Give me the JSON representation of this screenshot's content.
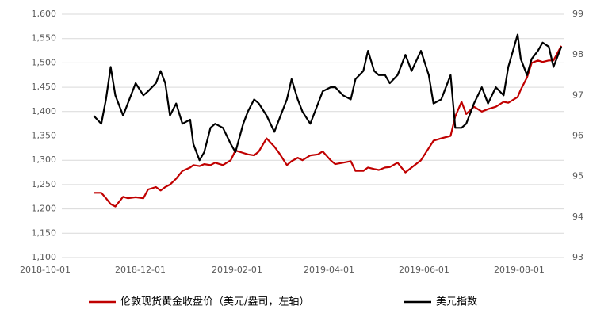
{
  "chart_data": {
    "type": "line",
    "x": [
      "2018-11-01",
      "2018-11-06",
      "2018-11-09",
      "2018-11-12",
      "2018-11-15",
      "2018-11-20",
      "2018-11-23",
      "2018-11-28",
      "2018-12-03",
      "2018-12-06",
      "2018-12-11",
      "2018-12-14",
      "2018-12-17",
      "2018-12-20",
      "2018-12-24",
      "2018-12-28",
      "2019-01-02",
      "2019-01-04",
      "2019-01-08",
      "2019-01-11",
      "2019-01-15",
      "2019-01-18",
      "2019-01-23",
      "2019-01-28",
      "2019-01-31",
      "2019-02-05",
      "2019-02-08",
      "2019-02-12",
      "2019-02-15",
      "2019-02-20",
      "2019-02-25",
      "2019-02-28",
      "2019-03-05",
      "2019-03-08",
      "2019-03-12",
      "2019-03-15",
      "2019-03-20",
      "2019-03-25",
      "2019-03-28",
      "2019-04-02",
      "2019-04-05",
      "2019-04-10",
      "2019-04-15",
      "2019-04-18",
      "2019-04-23",
      "2019-04-26",
      "2019-04-30",
      "2019-05-03",
      "2019-05-07",
      "2019-05-10",
      "2019-05-15",
      "2019-05-20",
      "2019-05-24",
      "2019-05-30",
      "2019-06-04",
      "2019-06-07",
      "2019-06-12",
      "2019-06-18",
      "2019-06-21",
      "2019-06-25",
      "2019-06-28",
      "2019-07-03",
      "2019-07-08",
      "2019-07-12",
      "2019-07-17",
      "2019-07-22",
      "2019-07-25",
      "2019-07-31",
      "2019-08-02",
      "2019-08-06",
      "2019-08-09",
      "2019-08-13",
      "2019-08-16",
      "2019-08-20",
      "2019-08-23",
      "2019-08-28"
    ],
    "series": [
      {
        "name": "伦敦现货黄金收盘价（美元/盎司，左轴）",
        "color": "#c00000",
        "axis": "y",
        "values": [
          1233,
          1233,
          1222,
          1210,
          1205,
          1225,
          1222,
          1224,
          1222,
          1240,
          1245,
          1238,
          1245,
          1250,
          1262,
          1278,
          1285,
          1290,
          1288,
          1292,
          1290,
          1295,
          1290,
          1300,
          1320,
          1315,
          1312,
          1310,
          1318,
          1345,
          1328,
          1315,
          1290,
          1298,
          1305,
          1300,
          1310,
          1312,
          1318,
          1300,
          1292,
          1295,
          1298,
          1278,
          1278,
          1285,
          1282,
          1280,
          1285,
          1286,
          1295,
          1275,
          1285,
          1300,
          1325,
          1340,
          1345,
          1350,
          1390,
          1420,
          1395,
          1410,
          1400,
          1405,
          1410,
          1420,
          1418,
          1430,
          1445,
          1470,
          1500,
          1505,
          1502,
          1505,
          1505,
          1535
        ]
      },
      {
        "name": "美元指数",
        "color": "#000000",
        "axis": "y2",
        "values": [
          96.5,
          96.3,
          96.9,
          97.7,
          97.0,
          96.5,
          96.8,
          97.3,
          97.0,
          97.1,
          97.3,
          97.6,
          97.3,
          96.5,
          96.8,
          96.3,
          96.4,
          95.8,
          95.4,
          95.6,
          96.2,
          96.3,
          96.2,
          95.8,
          95.6,
          96.3,
          96.6,
          96.9,
          96.8,
          96.5,
          96.1,
          96.4,
          96.9,
          97.4,
          96.9,
          96.6,
          96.3,
          96.8,
          97.1,
          97.2,
          97.2,
          97.0,
          96.9,
          97.4,
          97.6,
          98.1,
          97.6,
          97.5,
          97.5,
          97.3,
          97.5,
          98.0,
          97.6,
          98.1,
          97.5,
          96.8,
          96.9,
          97.5,
          96.2,
          96.2,
          96.3,
          96.8,
          97.2,
          96.8,
          97.2,
          97.0,
          97.7,
          98.5,
          97.9,
          97.5,
          97.9,
          98.1,
          98.3,
          98.2,
          97.7,
          98.2
        ]
      }
    ],
    "xlim": [
      "2018-10-01",
      "2019-08-30"
    ],
    "xticks": [
      "2018-10-01",
      "2018-12-01",
      "2019-02-01",
      "2019-04-01",
      "2019-06-01",
      "2019-08-01"
    ],
    "ylim": [
      1100,
      1600
    ],
    "yticks": [
      {
        "value": 1100,
        "label": "1,100"
      },
      {
        "value": 1150,
        "label": "1,150"
      },
      {
        "value": 1200,
        "label": "1,200"
      },
      {
        "value": 1250,
        "label": "1,250"
      },
      {
        "value": 1300,
        "label": "1,300"
      },
      {
        "value": 1350,
        "label": "1,350"
      },
      {
        "value": 1400,
        "label": "1,400"
      },
      {
        "value": 1450,
        "label": "1,450"
      },
      {
        "value": 1500,
        "label": "1,500"
      },
      {
        "value": 1550,
        "label": "1,550"
      },
      {
        "value": 1600,
        "label": "1,600"
      }
    ],
    "y2lim": [
      93,
      99
    ],
    "y2ticks": [
      93,
      94,
      95,
      96,
      97,
      98,
      99
    ],
    "grid": true,
    "legend": "bottom"
  }
}
